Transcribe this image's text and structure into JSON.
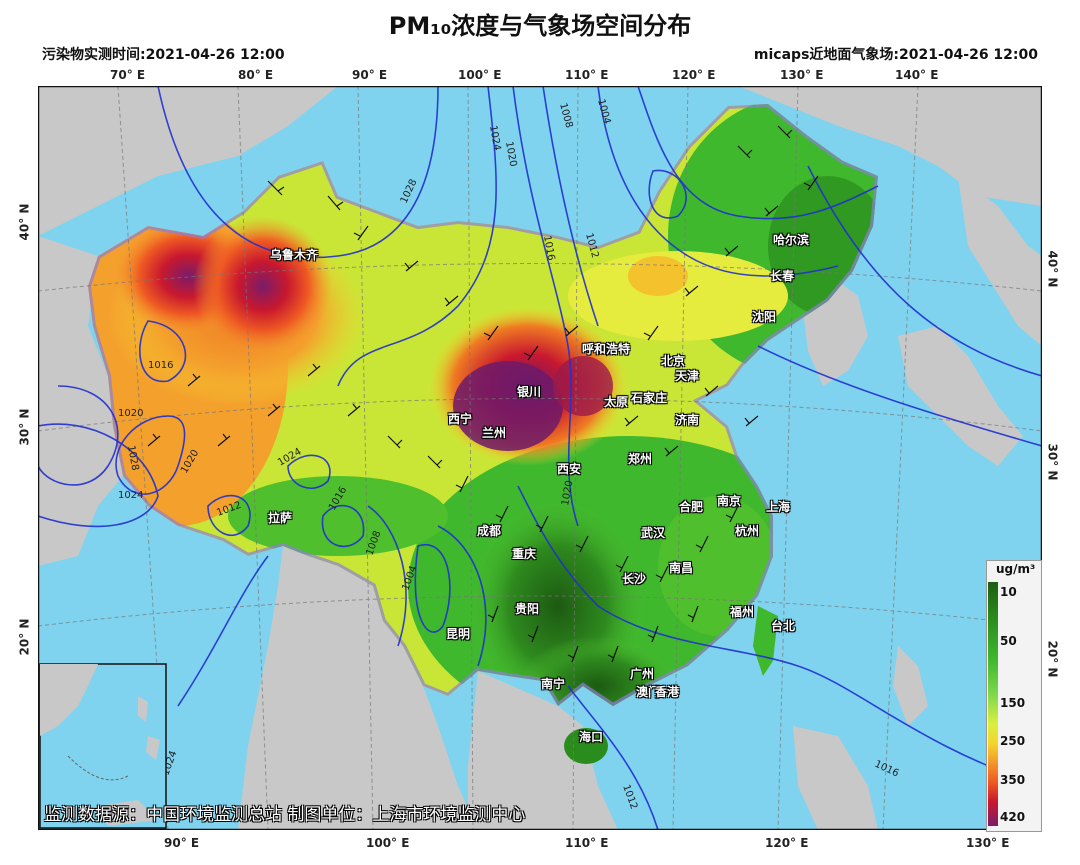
{
  "title": "PM₁₀浓度与气象场空间分布",
  "obs_time_label": "污染物实测时间:2021-04-26 12:00",
  "field_time_label": "micaps近地面气象场:2021-04-26 12:00",
  "top_lon_ticks": [
    "70° E",
    "80° E",
    "90° E",
    "100° E",
    "110° E",
    "120° E",
    "130° E",
    "140° E"
  ],
  "bottom_lon_ticks": [
    "90° E",
    "100° E",
    "110° E",
    "120° E",
    "130° E"
  ],
  "left_lat_ticks": [
    "40° N",
    "30° N",
    "20° N"
  ],
  "right_lat_ticks": [
    "40° N",
    "30° N",
    "20° N"
  ],
  "legend": {
    "unit": "ug/m³",
    "ticks": [
      "10",
      "50",
      "150",
      "250",
      "350",
      "420"
    ]
  },
  "isobar_labels": [
    "1028",
    "1024",
    "1020",
    "1016",
    "1012",
    "1008",
    "1004",
    "1016",
    "1020",
    "1024",
    "1028",
    "1020",
    "1024",
    "1012",
    "1016",
    "1008",
    "1004",
    "1016",
    "1012",
    "1020",
    "1024"
  ],
  "cities": [
    {
      "name": "乌鲁木齐"
    },
    {
      "name": "哈尔滨"
    },
    {
      "name": "长春"
    },
    {
      "name": "沈阳"
    },
    {
      "name": "呼和浩特"
    },
    {
      "name": "北京"
    },
    {
      "name": "天津"
    },
    {
      "name": "银川"
    },
    {
      "name": "太原"
    },
    {
      "name": "石家庄"
    },
    {
      "name": "西宁"
    },
    {
      "name": "兰州"
    },
    {
      "name": "济南"
    },
    {
      "name": "西安"
    },
    {
      "name": "郑州"
    },
    {
      "name": "合肥"
    },
    {
      "name": "南京"
    },
    {
      "name": "上海"
    },
    {
      "name": "拉萨"
    },
    {
      "name": "成都"
    },
    {
      "name": "武汉"
    },
    {
      "name": "杭州"
    },
    {
      "name": "重庆"
    },
    {
      "name": "长沙"
    },
    {
      "name": "南昌"
    },
    {
      "name": "贵阳"
    },
    {
      "name": "福州"
    },
    {
      "name": "台北"
    },
    {
      "name": "昆明"
    },
    {
      "name": "广州"
    },
    {
      "name": "澳门"
    },
    {
      "name": "香港"
    },
    {
      "name": "南宁"
    },
    {
      "name": "海口"
    }
  ],
  "footer": "监测数据源：中国环境监测总站   制图单位：上海市环境监测中心",
  "colors": {
    "sea": "#7fd3ef",
    "land_outside": "#c8c8c8",
    "isobar": "#2030d0"
  }
}
